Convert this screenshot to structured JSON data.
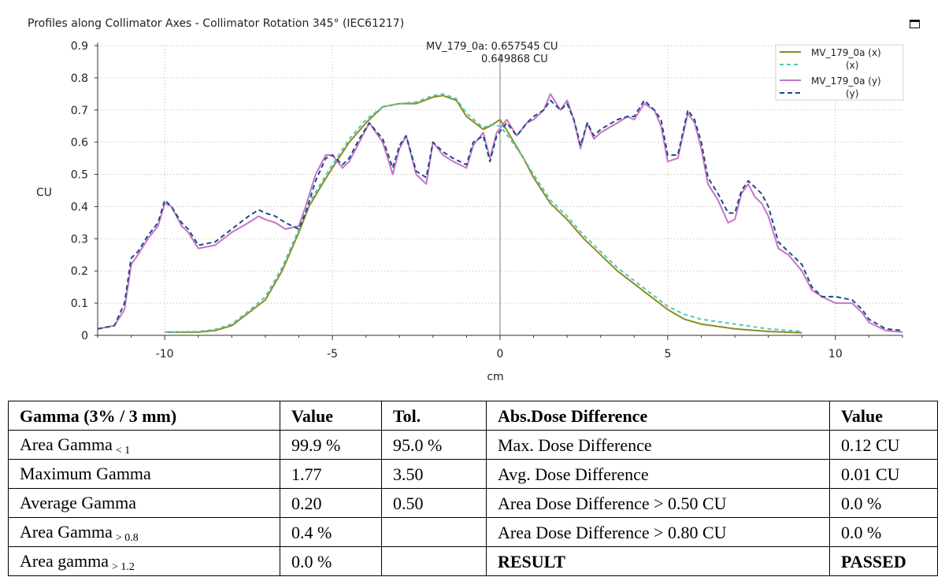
{
  "window": {
    "title": "Profiles along Collimator Axes - Collimator Rotation 345° (IEC61217)",
    "maximize_icon": "maximize-icon"
  },
  "chart_data": {
    "type": "line",
    "xlabel": "cm",
    "ylabel": "CU",
    "xlim": [
      -12,
      12
    ],
    "ylim": [
      0,
      0.9
    ],
    "xticks": [
      -10,
      -5,
      0,
      5,
      10
    ],
    "xtick_labels": [
      "-10",
      "-5",
      "0",
      "5",
      "10"
    ],
    "yticks": [
      0,
      0.1,
      0.2,
      0.3,
      0.4,
      0.5,
      0.6,
      0.7,
      0.8,
      0.9
    ],
    "ytick_labels": [
      "0",
      "0.1",
      "0.2",
      "0.3",
      "0.4",
      "0.5",
      "0.6",
      "0.7",
      "0.8",
      "0.9"
    ],
    "grid": true,
    "legend_position": "top-right",
    "cursor": {
      "x": 0,
      "label_1": "MV_179_0a: 0.657545 CU",
      "label_2": "0.649868 CU"
    },
    "legend": [
      {
        "line1": "MV_179_0a (x)",
        "line2": ""
      },
      {
        "line1": "",
        "line2": "(x)"
      },
      {
        "line1": "MV_179_0a (y)",
        "line2": ""
      },
      {
        "line1": "",
        "line2": "(y)"
      }
    ],
    "series": [
      {
        "color": "#8c8c1e",
        "dash": "solid",
        "points": [
          [
            -10,
            0.01
          ],
          [
            -9,
            0.01
          ],
          [
            -8.5,
            0.015
          ],
          [
            -8,
            0.03
          ],
          [
            -7.5,
            0.07
          ],
          [
            -7,
            0.11
          ],
          [
            -6.5,
            0.2
          ],
          [
            -6,
            0.32
          ],
          [
            -5.7,
            0.4
          ],
          [
            -5.3,
            0.47
          ],
          [
            -5,
            0.52
          ],
          [
            -4.5,
            0.6
          ],
          [
            -4,
            0.66
          ],
          [
            -3.5,
            0.71
          ],
          [
            -3,
            0.72
          ],
          [
            -2.5,
            0.72
          ],
          [
            -2,
            0.74
          ],
          [
            -1.7,
            0.745
          ],
          [
            -1.3,
            0.73
          ],
          [
            -1,
            0.68
          ],
          [
            -0.5,
            0.64
          ],
          [
            -0.3,
            0.65
          ],
          [
            0,
            0.67
          ],
          [
            0.3,
            0.62
          ],
          [
            0.7,
            0.55
          ],
          [
            1,
            0.49
          ],
          [
            1.5,
            0.41
          ],
          [
            2,
            0.36
          ],
          [
            2.5,
            0.3
          ],
          [
            3,
            0.25
          ],
          [
            3.5,
            0.2
          ],
          [
            4,
            0.16
          ],
          [
            4.5,
            0.12
          ],
          [
            5,
            0.08
          ],
          [
            5.5,
            0.05
          ],
          [
            6,
            0.035
          ],
          [
            7,
            0.02
          ],
          [
            8,
            0.012
          ],
          [
            9,
            0.008
          ]
        ]
      },
      {
        "color": "#4fc9c0",
        "dash": "5,4",
        "points": [
          [
            -10,
            0.01
          ],
          [
            -9,
            0.012
          ],
          [
            -8.5,
            0.018
          ],
          [
            -8,
            0.035
          ],
          [
            -7.5,
            0.075
          ],
          [
            -7,
            0.12
          ],
          [
            -6.5,
            0.21
          ],
          [
            -6,
            0.33
          ],
          [
            -5.7,
            0.41
          ],
          [
            -5.3,
            0.48
          ],
          [
            -5,
            0.53
          ],
          [
            -4.5,
            0.61
          ],
          [
            -4,
            0.67
          ],
          [
            -3.5,
            0.71
          ],
          [
            -3,
            0.72
          ],
          [
            -2.5,
            0.725
          ],
          [
            -2,
            0.745
          ],
          [
            -1.7,
            0.75
          ],
          [
            -1.3,
            0.735
          ],
          [
            -1,
            0.69
          ],
          [
            -0.5,
            0.645
          ],
          [
            -0.3,
            0.655
          ],
          [
            0,
            0.65
          ],
          [
            0.3,
            0.61
          ],
          [
            0.7,
            0.55
          ],
          [
            1,
            0.5
          ],
          [
            1.5,
            0.42
          ],
          [
            2,
            0.37
          ],
          [
            2.5,
            0.31
          ],
          [
            3,
            0.26
          ],
          [
            3.5,
            0.21
          ],
          [
            4,
            0.17
          ],
          [
            4.5,
            0.13
          ],
          [
            5,
            0.09
          ],
          [
            5.5,
            0.065
          ],
          [
            6,
            0.05
          ],
          [
            7,
            0.035
          ],
          [
            8,
            0.02
          ],
          [
            9,
            0.012
          ]
        ]
      },
      {
        "color": "#c774c7",
        "dash": "solid",
        "points": [
          [
            -12,
            0.02
          ],
          [
            -11.5,
            0.03
          ],
          [
            -11.2,
            0.08
          ],
          [
            -11,
            0.22
          ],
          [
            -10.8,
            0.25
          ],
          [
            -10.5,
            0.3
          ],
          [
            -10.2,
            0.34
          ],
          [
            -10,
            0.41
          ],
          [
            -9.8,
            0.4
          ],
          [
            -9.5,
            0.34
          ],
          [
            -9.3,
            0.32
          ],
          [
            -9,
            0.27
          ],
          [
            -8.5,
            0.28
          ],
          [
            -8,
            0.32
          ],
          [
            -7.5,
            0.35
          ],
          [
            -7.2,
            0.37
          ],
          [
            -7,
            0.36
          ],
          [
            -6.7,
            0.35
          ],
          [
            -6.4,
            0.33
          ],
          [
            -6,
            0.34
          ],
          [
            -5.8,
            0.4
          ],
          [
            -5.5,
            0.5
          ],
          [
            -5.2,
            0.56
          ],
          [
            -5,
            0.56
          ],
          [
            -4.7,
            0.52
          ],
          [
            -4.5,
            0.54
          ],
          [
            -4.2,
            0.6
          ],
          [
            -3.9,
            0.66
          ],
          [
            -3.5,
            0.6
          ],
          [
            -3.2,
            0.5
          ],
          [
            -3,
            0.58
          ],
          [
            -2.8,
            0.62
          ],
          [
            -2.5,
            0.5
          ],
          [
            -2.2,
            0.47
          ],
          [
            -2,
            0.6
          ],
          [
            -1.7,
            0.56
          ],
          [
            -1.4,
            0.54
          ],
          [
            -1,
            0.52
          ],
          [
            -0.8,
            0.59
          ],
          [
            -0.5,
            0.63
          ],
          [
            -0.3,
            0.55
          ],
          [
            -0.1,
            0.63
          ],
          [
            0.2,
            0.67
          ],
          [
            0.5,
            0.62
          ],
          [
            0.8,
            0.66
          ],
          [
            1,
            0.67
          ],
          [
            1.3,
            0.7
          ],
          [
            1.5,
            0.75
          ],
          [
            1.8,
            0.7
          ],
          [
            2,
            0.73
          ],
          [
            2.2,
            0.67
          ],
          [
            2.4,
            0.58
          ],
          [
            2.6,
            0.66
          ],
          [
            2.8,
            0.61
          ],
          [
            3,
            0.63
          ],
          [
            3.5,
            0.66
          ],
          [
            3.8,
            0.68
          ],
          [
            4,
            0.67
          ],
          [
            4.3,
            0.72
          ],
          [
            4.6,
            0.7
          ],
          [
            4.8,
            0.65
          ],
          [
            5,
            0.54
          ],
          [
            5.3,
            0.55
          ],
          [
            5.6,
            0.69
          ],
          [
            5.8,
            0.66
          ],
          [
            6,
            0.58
          ],
          [
            6.2,
            0.47
          ],
          [
            6.5,
            0.42
          ],
          [
            6.8,
            0.35
          ],
          [
            7,
            0.36
          ],
          [
            7.2,
            0.44
          ],
          [
            7.4,
            0.47
          ],
          [
            7.6,
            0.43
          ],
          [
            7.8,
            0.41
          ],
          [
            8,
            0.37
          ],
          [
            8.3,
            0.27
          ],
          [
            8.6,
            0.25
          ],
          [
            9,
            0.2
          ],
          [
            9.3,
            0.14
          ],
          [
            9.6,
            0.12
          ],
          [
            10,
            0.1
          ],
          [
            10.5,
            0.1
          ],
          [
            10.8,
            0.07
          ],
          [
            11,
            0.04
          ],
          [
            11.5,
            0.015
          ],
          [
            12,
            0.01
          ]
        ]
      },
      {
        "color": "#1d4b84",
        "dash": "6,4",
        "points": [
          [
            -12,
            0.02
          ],
          [
            -11.5,
            0.03
          ],
          [
            -11.2,
            0.1
          ],
          [
            -11,
            0.24
          ],
          [
            -10.8,
            0.26
          ],
          [
            -10.5,
            0.31
          ],
          [
            -10.2,
            0.35
          ],
          [
            -10,
            0.42
          ],
          [
            -9.8,
            0.4
          ],
          [
            -9.5,
            0.35
          ],
          [
            -9.3,
            0.33
          ],
          [
            -9,
            0.28
          ],
          [
            -8.5,
            0.29
          ],
          [
            -8,
            0.33
          ],
          [
            -7.5,
            0.37
          ],
          [
            -7.2,
            0.39
          ],
          [
            -7,
            0.38
          ],
          [
            -6.7,
            0.37
          ],
          [
            -6.4,
            0.35
          ],
          [
            -6,
            0.33
          ],
          [
            -5.8,
            0.38
          ],
          [
            -5.5,
            0.48
          ],
          [
            -5.2,
            0.55
          ],
          [
            -5,
            0.56
          ],
          [
            -4.7,
            0.53
          ],
          [
            -4.5,
            0.55
          ],
          [
            -4.2,
            0.61
          ],
          [
            -3.9,
            0.66
          ],
          [
            -3.5,
            0.61
          ],
          [
            -3.2,
            0.52
          ],
          [
            -3,
            0.59
          ],
          [
            -2.8,
            0.62
          ],
          [
            -2.5,
            0.51
          ],
          [
            -2.2,
            0.49
          ],
          [
            -2,
            0.6
          ],
          [
            -1.7,
            0.57
          ],
          [
            -1.4,
            0.55
          ],
          [
            -1,
            0.53
          ],
          [
            -0.8,
            0.6
          ],
          [
            -0.5,
            0.62
          ],
          [
            -0.3,
            0.54
          ],
          [
            -0.1,
            0.62
          ],
          [
            0.2,
            0.66
          ],
          [
            0.5,
            0.62
          ],
          [
            0.8,
            0.66
          ],
          [
            1,
            0.68
          ],
          [
            1.3,
            0.7
          ],
          [
            1.5,
            0.73
          ],
          [
            1.8,
            0.7
          ],
          [
            2,
            0.72
          ],
          [
            2.2,
            0.67
          ],
          [
            2.4,
            0.59
          ],
          [
            2.6,
            0.66
          ],
          [
            2.8,
            0.62
          ],
          [
            3,
            0.64
          ],
          [
            3.5,
            0.67
          ],
          [
            3.8,
            0.68
          ],
          [
            4,
            0.68
          ],
          [
            4.3,
            0.73
          ],
          [
            4.6,
            0.7
          ],
          [
            4.8,
            0.67
          ],
          [
            5,
            0.56
          ],
          [
            5.3,
            0.56
          ],
          [
            5.6,
            0.7
          ],
          [
            5.8,
            0.67
          ],
          [
            6,
            0.6
          ],
          [
            6.2,
            0.49
          ],
          [
            6.5,
            0.44
          ],
          [
            6.8,
            0.38
          ],
          [
            7,
            0.38
          ],
          [
            7.2,
            0.45
          ],
          [
            7.4,
            0.48
          ],
          [
            7.6,
            0.46
          ],
          [
            7.8,
            0.44
          ],
          [
            8,
            0.4
          ],
          [
            8.3,
            0.29
          ],
          [
            8.6,
            0.26
          ],
          [
            9,
            0.22
          ],
          [
            9.3,
            0.15
          ],
          [
            9.6,
            0.12
          ],
          [
            10,
            0.12
          ],
          [
            10.5,
            0.11
          ],
          [
            10.8,
            0.08
          ],
          [
            11,
            0.05
          ],
          [
            11.5,
            0.02
          ],
          [
            12,
            0.015
          ]
        ]
      }
    ]
  },
  "table": {
    "headers": [
      "Gamma (3% / 3 mm)",
      "Value",
      "Tol.",
      "Abs.Dose Difference",
      "Value"
    ],
    "rows": [
      {
        "label": "Area Gamma",
        "sub": "< 1",
        "value": "99.9 %",
        "tol": "95.0 %",
        "dose_label": "Max. Dose Difference",
        "dose_value": "0.12 CU"
      },
      {
        "label": "Maximum Gamma",
        "sub": "",
        "value": "1.77",
        "tol": "3.50",
        "dose_label": "Avg. Dose Difference",
        "dose_value": "0.01 CU"
      },
      {
        "label": "Average Gamma",
        "sub": "",
        "value": "0.20",
        "tol": "0.50",
        "dose_label": "Area Dose Difference > 0.50 CU",
        "dose_value": "0.0 %"
      },
      {
        "label": "Area Gamma",
        "sub": "> 0.8",
        "value": "0.4 %",
        "tol": "",
        "dose_label": "Area Dose Difference > 0.80 CU",
        "dose_value": "0.0 %"
      },
      {
        "label": "Area gamma",
        "sub": "> 1.2",
        "value": "0.0 %",
        "tol": "",
        "dose_label": "RESULT",
        "dose_value": "PASSED"
      }
    ]
  }
}
